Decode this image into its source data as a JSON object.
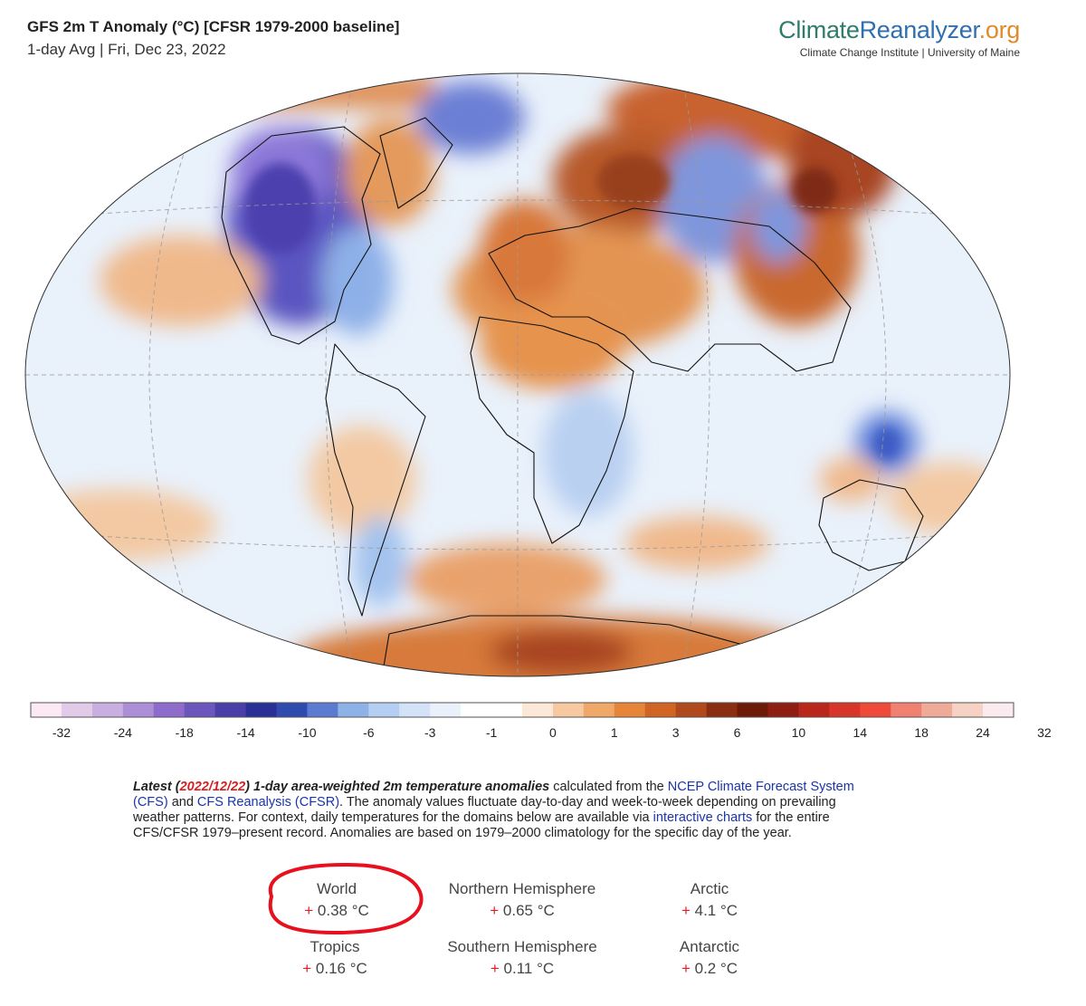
{
  "header": {
    "title": "GFS 2m T Anomaly (°C) [CFSR 1979-2000 baseline]",
    "subtitle": "1-day Avg | Fri, Dec 23, 2022"
  },
  "brand": {
    "part1": "Climate",
    "part2": "Reanalyzer",
    "part3": ".org",
    "institution": "Climate Change Institute | University of Maine"
  },
  "legend": {
    "tick_labels": [
      "-32",
      "-24",
      "-18",
      "-14",
      "-10",
      "-6",
      "-3",
      "-1",
      "0",
      "1",
      "3",
      "6",
      "10",
      "14",
      "18",
      "24",
      "32"
    ],
    "colors": [
      "#fbe9f3",
      "#e2cbe9",
      "#c9aee0",
      "#ad8fd8",
      "#8f6ccb",
      "#6c55bb",
      "#4a3fa8",
      "#2a2f96",
      "#2f4bb0",
      "#5a7bcf",
      "#8eb2e8",
      "#b4cff1",
      "#d3e2f6",
      "#eaf1fb",
      "#ffffff",
      "#ffffff",
      "#fde8d8",
      "#f6c9a1",
      "#f0a868",
      "#e6843a",
      "#cf6424",
      "#b04a1c",
      "#8a2e12",
      "#6e1a0a",
      "#8e1d14",
      "#b8261c",
      "#d8352a",
      "#ee4a3a",
      "#f08070",
      "#f0aa9a",
      "#f6d2c4",
      "#fcebee"
    ]
  },
  "description": {
    "latest_prefix": "Latest (",
    "latest_date": "2022/12/22",
    "latest_suffix": ") 1-day area-weighted 2m temperature anomalies",
    "text1": " calculated from the ",
    "link1": "NCEP Climate Forecast System (CFS)",
    "text2": " and ",
    "link2": "CFS Reanalysis (CFSR)",
    "text3": ". The anomaly values fluctuate day-to-day and week-to-week depending on prevailing weather patterns. For context, daily temperatures for the domains below are available via ",
    "link3": "interactive charts",
    "text4": " for the entire CFS/CFSR 1979–present record. Anomalies are based on 1979–2000 climatology for the specific day of the year."
  },
  "stats": {
    "world": {
      "label": "World",
      "sign": "+",
      "value": "0.38 °C"
    },
    "nh": {
      "label": "Northern Hemisphere",
      "sign": "+",
      "value": "0.65 °C"
    },
    "arctic": {
      "label": "Arctic",
      "sign": "+",
      "value": "4.1 °C"
    },
    "tropics": {
      "label": "Tropics",
      "sign": "+",
      "value": "0.16 °C"
    },
    "sh": {
      "label": "Southern Hemisphere",
      "sign": "+",
      "value": "0.11 °C"
    },
    "antarctic": {
      "label": "Antarctic",
      "sign": "+",
      "value": "0.2 °C"
    }
  },
  "highlight_color": "#e8101e"
}
